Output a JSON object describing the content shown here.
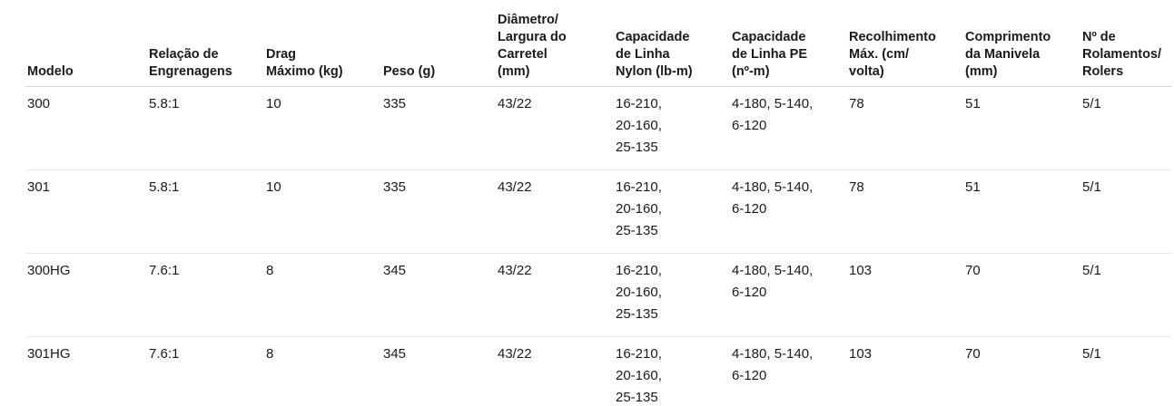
{
  "table": {
    "columns": [
      "Modelo",
      "Relação de\nEngrenagens",
      "Drag\nMáximo (kg)",
      "Peso (g)",
      "Diâmetro/\nLargura do\nCarretel\n(mm)",
      "Capacidade\nde Linha\nNylon (lb-m)",
      "Capacidade\nde Linha PE\n(nº-m)",
      "Recolhimento\nMáx. (cm/\nvolta)",
      "Comprimento\nda Manivela\n(mm)",
      "Nº de\nRolamentos/\nRolers"
    ],
    "rows": [
      [
        "300",
        "5.8:1",
        "10",
        "335",
        "43/22",
        "16-210,\n20-160,\n25-135",
        "4-180, 5-140,\n6-120",
        "78",
        "51",
        "5/1"
      ],
      [
        "301",
        "5.8:1",
        "10",
        "335",
        "43/22",
        "16-210,\n20-160,\n25-135",
        "4-180, 5-140,\n6-120",
        "78",
        "51",
        "5/1"
      ],
      [
        "300HG",
        "7.6:1",
        "8",
        "345",
        "43/22",
        "16-210,\n20-160,\n25-135",
        "4-180, 5-140,\n6-120",
        "103",
        "70",
        "5/1"
      ],
      [
        "301HG",
        "7.6:1",
        "8",
        "345",
        "43/22",
        "16-210,\n20-160,\n25-135",
        "4-180, 5-140,\n6-120",
        "103",
        "70",
        "5/1"
      ]
    ]
  },
  "colors": {
    "background": "#ffffff",
    "text": "#1a1a1a",
    "header_divider": "#d4d4d4",
    "row_divider": "#e9e9e9"
  }
}
